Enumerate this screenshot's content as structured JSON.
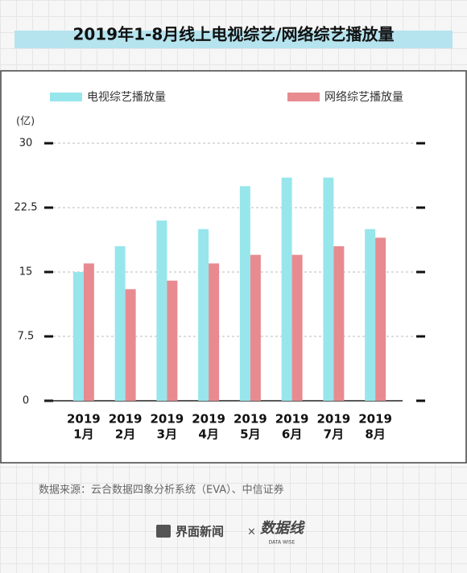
{
  "chart_data": {
    "type": "bar",
    "title": "2019年1-8月线上电视综艺/网络综艺播放量",
    "y_unit": "(亿)",
    "categories": [
      [
        "2019",
        "1月"
      ],
      [
        "2019",
        "2月"
      ],
      [
        "2019",
        "3月"
      ],
      [
        "2019",
        "4月"
      ],
      [
        "2019",
        "5月"
      ],
      [
        "2019",
        "6月"
      ],
      [
        "2019",
        "7月"
      ],
      [
        "2019",
        "8月"
      ]
    ],
    "series": [
      {
        "name": "电视综艺播放量",
        "color": "#97e6ec",
        "values": [
          15,
          18,
          21,
          20,
          25,
          26,
          26,
          20
        ]
      },
      {
        "name": "网络综艺播放量",
        "color": "#e78b91",
        "values": [
          16,
          13,
          14,
          16,
          17,
          17,
          18,
          19
        ]
      }
    ],
    "ylim": [
      0,
      30
    ],
    "yticks": [
      0,
      7.5,
      15,
      22.5,
      30
    ],
    "grid": true,
    "source": "数据来源：云合数据四象分析系统（EVA）、中信证券",
    "footer": {
      "brand": "界面新闻",
      "separator": "×",
      "logo": "数据线",
      "logo_sub": "DATA WISE"
    }
  }
}
